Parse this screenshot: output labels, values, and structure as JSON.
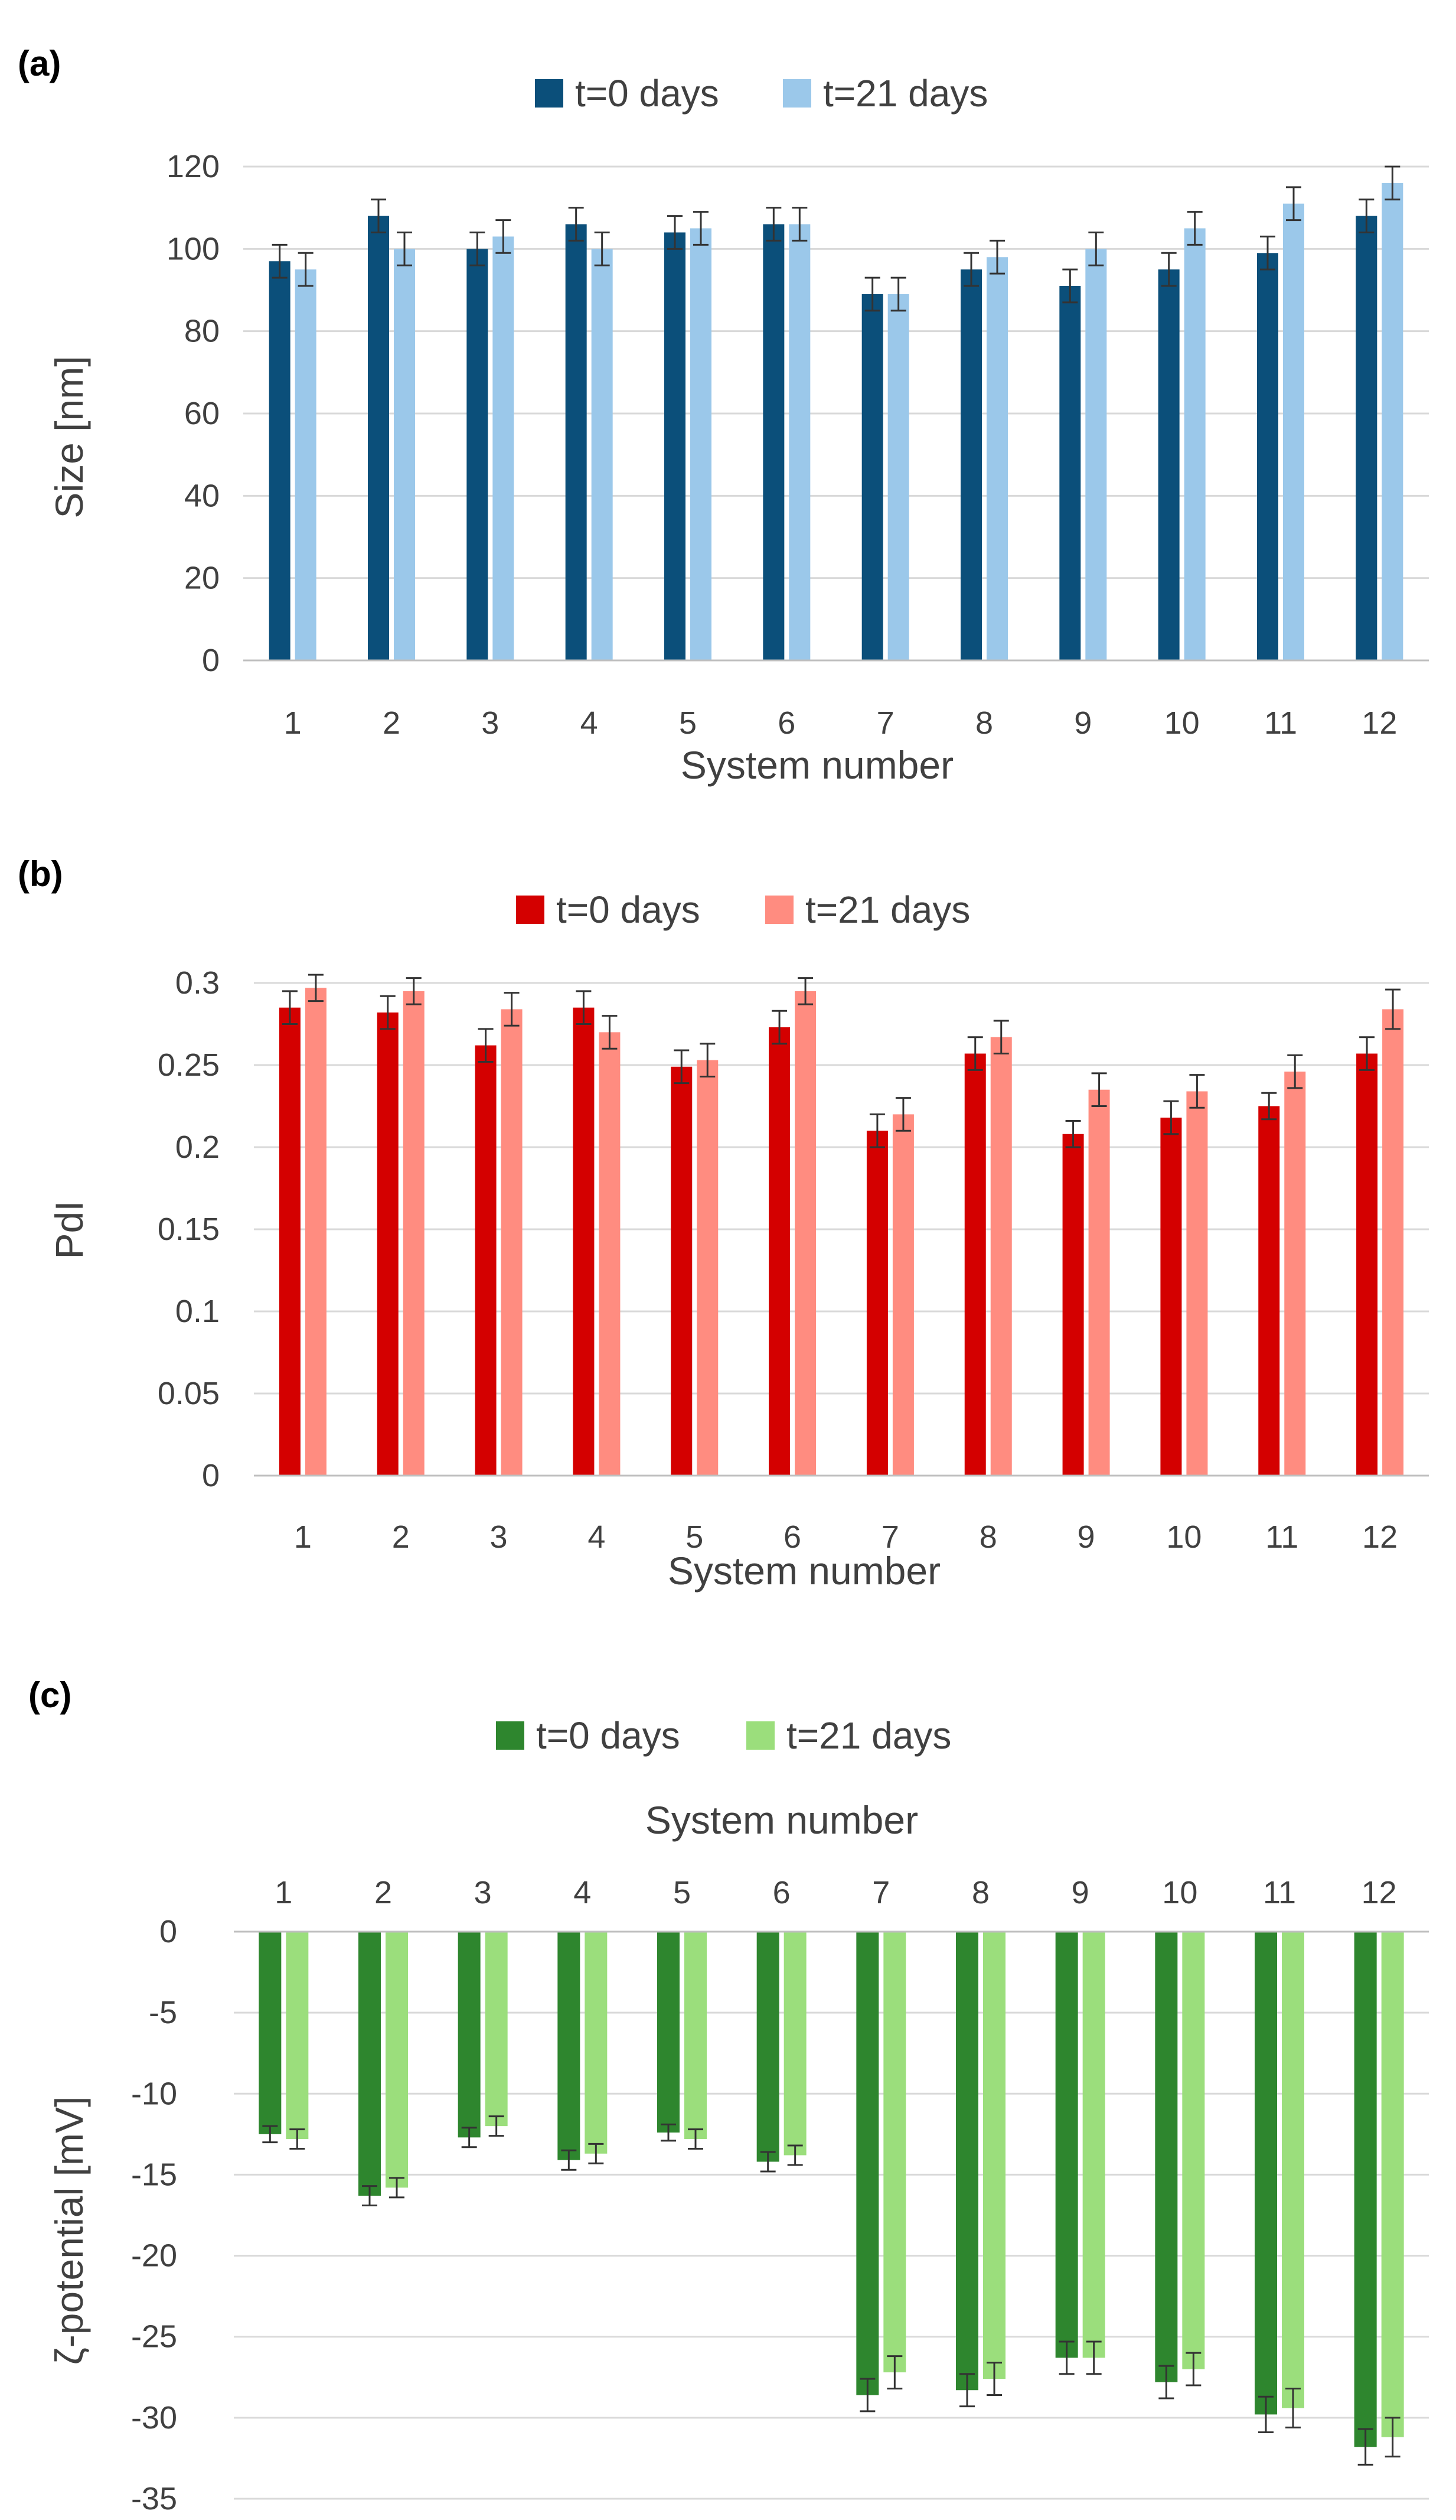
{
  "chart_data": [
    {
      "type": "bar",
      "panel": "(a)",
      "xlabel": "System number",
      "ylabel": "Size  [nm]",
      "categories": [
        "1",
        "2",
        "3",
        "4",
        "5",
        "6",
        "7",
        "8",
        "9",
        "10",
        "11",
        "12"
      ],
      "ylim": [
        0,
        120
      ],
      "yticks": [
        "0",
        "20",
        "40",
        "60",
        "80",
        "100",
        "120"
      ],
      "grid": true,
      "legend_position": "top-center",
      "series": [
        {
          "name": "t=0 days",
          "color": "#0b4f7a",
          "values": [
            97,
            108,
            100,
            106,
            104,
            106,
            89,
            95,
            91,
            95,
            99,
            108
          ],
          "errors": [
            4,
            4,
            4,
            4,
            4,
            4,
            4,
            4,
            4,
            4,
            4,
            4
          ]
        },
        {
          "name": "t=21 days",
          "color": "#9bc8ea",
          "values": [
            95,
            100,
            103,
            100,
            105,
            106,
            89,
            98,
            100,
            105,
            111,
            116
          ],
          "errors": [
            4,
            4,
            4,
            4,
            4,
            4,
            4,
            4,
            4,
            4,
            4,
            4
          ]
        }
      ]
    },
    {
      "type": "bar",
      "panel": "(b)",
      "xlabel": "System number",
      "ylabel": "PdI",
      "categories": [
        "1",
        "2",
        "3",
        "4",
        "5",
        "6",
        "7",
        "8",
        "9",
        "10",
        "11",
        "12"
      ],
      "ylim": [
        0,
        0.3
      ],
      "yticks": [
        "0",
        "0.05",
        "0.1",
        "0.15",
        "0.2",
        "0.25",
        "0.3"
      ],
      "grid": true,
      "legend_position": "top-center",
      "series": [
        {
          "name": "t=0 days",
          "color": "#d40000",
          "values": [
            0.285,
            0.282,
            0.262,
            0.285,
            0.249,
            0.273,
            0.21,
            0.257,
            0.208,
            0.218,
            0.225,
            0.257
          ],
          "errors": [
            0.01,
            0.01,
            0.01,
            0.01,
            0.01,
            0.01,
            0.01,
            0.01,
            0.008,
            0.01,
            0.008,
            0.01
          ]
        },
        {
          "name": "t=21 days",
          "color": "#ff8c80",
          "values": [
            0.297,
            0.295,
            0.284,
            0.27,
            0.253,
            0.295,
            0.22,
            0.267,
            0.235,
            0.234,
            0.246,
            0.284
          ],
          "errors": [
            0.008,
            0.008,
            0.01,
            0.01,
            0.01,
            0.008,
            0.01,
            0.01,
            0.01,
            0.01,
            0.01,
            0.012
          ]
        }
      ]
    },
    {
      "type": "bar",
      "panel": "(c)",
      "xlabel": "System number",
      "ylabel": "ζ-potential  [mV]",
      "categories": [
        "1",
        "2",
        "3",
        "4",
        "5",
        "6",
        "7",
        "8",
        "9",
        "10",
        "11",
        "12"
      ],
      "ylim": [
        -35,
        0
      ],
      "yticks": [
        "0",
        "-5",
        "-10",
        "-15",
        "-20",
        "-25",
        "-30",
        "-35"
      ],
      "grid": true,
      "legend_position": "top-center",
      "xaxis_position": "top",
      "series": [
        {
          "name": "t=0 days",
          "color": "#2e862e",
          "values": [
            -12.5,
            -16.3,
            -12.7,
            -14.1,
            -12.4,
            -14.2,
            -28.6,
            -28.3,
            -26.3,
            -27.8,
            -29.8,
            -31.8
          ],
          "errors": [
            0.5,
            0.6,
            0.6,
            0.6,
            0.5,
            0.6,
            1,
            1,
            1,
            1,
            1.1,
            1.1
          ]
        },
        {
          "name": "t=21 days",
          "color": "#9bde7c",
          "values": [
            -12.8,
            -15.8,
            -12,
            -13.7,
            -12.8,
            -13.8,
            -27.2,
            -27.6,
            -26.3,
            -27,
            -29.4,
            -31.2
          ],
          "errors": [
            0.6,
            0.6,
            0.6,
            0.6,
            0.6,
            0.6,
            1,
            1,
            1,
            1,
            1.2,
            1.2
          ]
        }
      ]
    }
  ]
}
